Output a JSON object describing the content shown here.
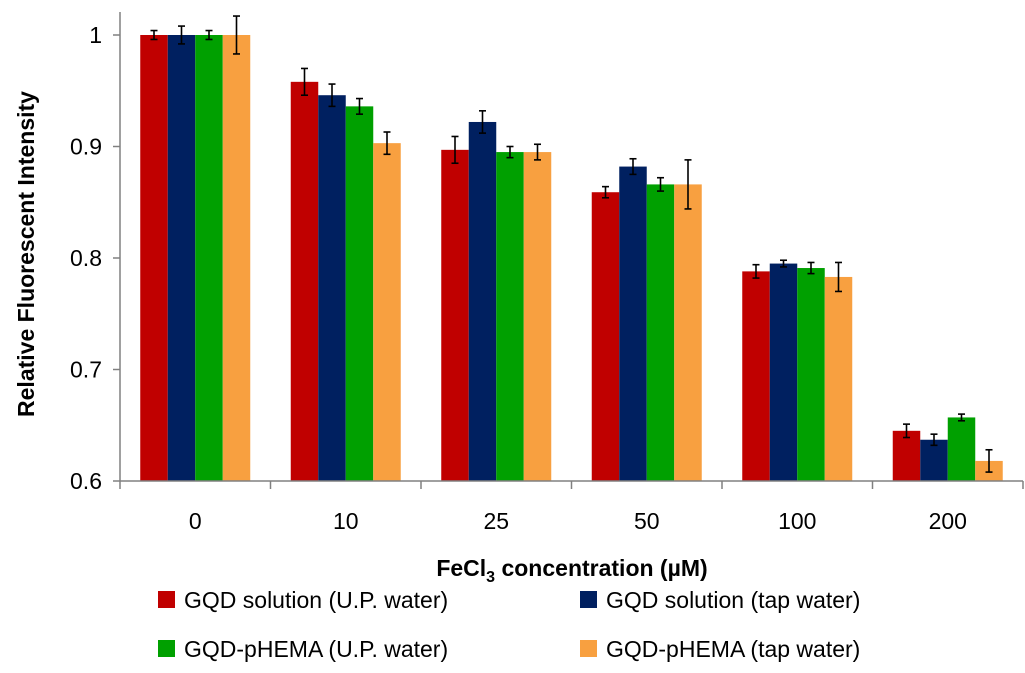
{
  "chart_data": {
    "type": "bar",
    "title": "",
    "xlabel": {
      "main": "FeCl",
      "sub": "3",
      "rest": " concentration (µM)"
    },
    "ylabel": "Relative Fluorescent Intensity",
    "ylim": [
      0.6,
      1.0
    ],
    "yticks": [
      "0.6",
      "0.7",
      "0.8",
      "0.9",
      "1"
    ],
    "categories": [
      "0",
      "10",
      "25",
      "50",
      "100",
      "200"
    ],
    "grid": false,
    "legend_position": "bottom",
    "series": [
      {
        "name": "GQD solution (U.P. water)",
        "color": "#c00000",
        "values": [
          1.0,
          0.958,
          0.897,
          0.859,
          0.788,
          0.645
        ],
        "errors": [
          0.004,
          0.012,
          0.012,
          0.005,
          0.006,
          0.006
        ]
      },
      {
        "name": "GQD solution (tap water)",
        "color": "#002060",
        "values": [
          1.0,
          0.946,
          0.922,
          0.882,
          0.795,
          0.637
        ],
        "errors": [
          0.008,
          0.01,
          0.01,
          0.007,
          0.003,
          0.005
        ]
      },
      {
        "name": "GQD-pHEMA (U.P. water)",
        "color": "#00a000",
        "values": [
          1.0,
          0.936,
          0.895,
          0.866,
          0.791,
          0.657
        ],
        "errors": [
          0.004,
          0.007,
          0.005,
          0.006,
          0.005,
          0.003
        ]
      },
      {
        "name": "GQD-pHEMA (tap water)",
        "color": "#f8a040",
        "values": [
          1.0,
          0.903,
          0.895,
          0.866,
          0.783,
          0.618
        ],
        "errors": [
          0.017,
          0.01,
          0.007,
          0.022,
          0.013,
          0.01
        ]
      }
    ]
  }
}
